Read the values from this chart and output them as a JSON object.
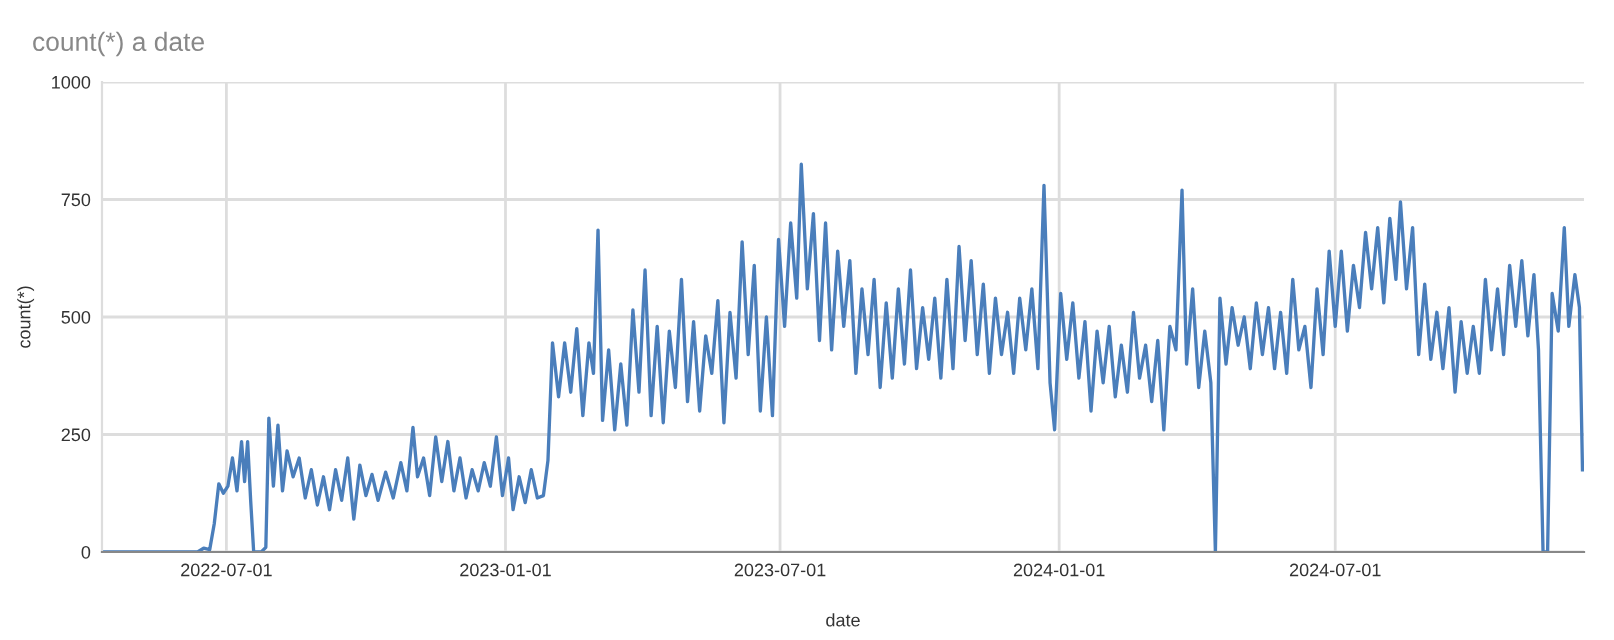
{
  "chart_data": {
    "type": "line",
    "title": "count(*) a date",
    "xlabel": "date",
    "ylabel": "count(*)",
    "xlim": [
      "2022-04-10",
      "2024-12-12"
    ],
    "xticks": [
      "2022-07-01",
      "2023-01-01",
      "2023-07-01",
      "2024-01-01",
      "2024-07-01"
    ],
    "ylim": [
      0,
      1000
    ],
    "yticks": [
      0,
      250,
      500,
      750,
      1000
    ],
    "grid": true,
    "marker": "none",
    "line_style": "solid",
    "x": [
      "2022-04-10",
      "2022-05-15",
      "2022-06-12",
      "2022-06-16",
      "2022-06-20",
      "2022-06-23",
      "2022-06-26",
      "2022-06-29",
      "2022-07-02",
      "2022-07-05",
      "2022-07-08",
      "2022-07-11",
      "2022-07-13",
      "2022-07-15",
      "2022-07-17",
      "2022-07-19",
      "2022-07-24",
      "2022-07-27",
      "2022-07-29",
      "2022-08-01",
      "2022-08-04",
      "2022-08-07",
      "2022-08-10",
      "2022-08-14",
      "2022-08-18",
      "2022-08-22",
      "2022-08-26",
      "2022-08-30",
      "2022-09-03",
      "2022-09-07",
      "2022-09-11",
      "2022-09-15",
      "2022-09-19",
      "2022-09-23",
      "2022-09-27",
      "2022-10-01",
      "2022-10-05",
      "2022-10-09",
      "2022-10-14",
      "2022-10-19",
      "2022-10-24",
      "2022-10-28",
      "2022-11-01",
      "2022-11-04",
      "2022-11-08",
      "2022-11-12",
      "2022-11-16",
      "2022-11-20",
      "2022-11-24",
      "2022-11-28",
      "2022-12-02",
      "2022-12-06",
      "2022-12-10",
      "2022-12-14",
      "2022-12-18",
      "2022-12-22",
      "2022-12-26",
      "2022-12-30",
      "2023-01-03",
      "2023-01-06",
      "2023-01-10",
      "2023-01-14",
      "2023-01-18",
      "2023-01-22",
      "2023-01-26",
      "2023-01-29",
      "2023-02-01",
      "2023-02-05",
      "2023-02-09",
      "2023-02-13",
      "2023-02-17",
      "2023-02-21",
      "2023-02-25",
      "2023-02-28",
      "2023-03-03",
      "2023-03-06",
      "2023-03-10",
      "2023-03-14",
      "2023-03-18",
      "2023-03-22",
      "2023-03-26",
      "2023-03-30",
      "2023-04-03",
      "2023-04-07",
      "2023-04-11",
      "2023-04-15",
      "2023-04-19",
      "2023-04-23",
      "2023-04-27",
      "2023-05-01",
      "2023-05-05",
      "2023-05-09",
      "2023-05-13",
      "2023-05-17",
      "2023-05-21",
      "2023-05-25",
      "2023-05-29",
      "2023-06-02",
      "2023-06-06",
      "2023-06-10",
      "2023-06-14",
      "2023-06-18",
      "2023-06-22",
      "2023-06-26",
      "2023-06-30",
      "2023-07-04",
      "2023-07-08",
      "2023-07-12",
      "2023-07-15",
      "2023-07-19",
      "2023-07-23",
      "2023-07-27",
      "2023-07-31",
      "2023-08-04",
      "2023-08-08",
      "2023-08-12",
      "2023-08-16",
      "2023-08-20",
      "2023-08-24",
      "2023-08-28",
      "2023-09-01",
      "2023-09-05",
      "2023-09-09",
      "2023-09-13",
      "2023-09-17",
      "2023-09-21",
      "2023-09-25",
      "2023-09-29",
      "2023-10-03",
      "2023-10-07",
      "2023-10-11",
      "2023-10-15",
      "2023-10-19",
      "2023-10-23",
      "2023-10-27",
      "2023-10-31",
      "2023-11-04",
      "2023-11-08",
      "2023-11-12",
      "2023-11-16",
      "2023-11-20",
      "2023-11-24",
      "2023-11-28",
      "2023-12-02",
      "2023-12-06",
      "2023-12-10",
      "2023-12-14",
      "2023-12-18",
      "2023-12-22",
      "2023-12-26",
      "2023-12-29",
      "2024-01-02",
      "2024-01-06",
      "2024-01-10",
      "2024-01-14",
      "2024-01-18",
      "2024-01-22",
      "2024-01-26",
      "2024-01-30",
      "2024-02-03",
      "2024-02-07",
      "2024-02-11",
      "2024-02-15",
      "2024-02-19",
      "2024-02-23",
      "2024-02-27",
      "2024-03-02",
      "2024-03-06",
      "2024-03-10",
      "2024-03-14",
      "2024-03-18",
      "2024-03-22",
      "2024-03-25",
      "2024-03-29",
      "2024-04-02",
      "2024-04-06",
      "2024-04-10",
      "2024-04-13",
      "2024-04-16",
      "2024-04-20",
      "2024-04-24",
      "2024-04-28",
      "2024-05-02",
      "2024-05-06",
      "2024-05-10",
      "2024-05-14",
      "2024-05-18",
      "2024-05-22",
      "2024-05-26",
      "2024-05-30",
      "2024-06-03",
      "2024-06-07",
      "2024-06-11",
      "2024-06-15",
      "2024-06-19",
      "2024-06-23",
      "2024-06-27",
      "2024-07-01",
      "2024-07-05",
      "2024-07-09",
      "2024-07-13",
      "2024-07-17",
      "2024-07-21",
      "2024-07-25",
      "2024-07-29",
      "2024-08-02",
      "2024-08-06",
      "2024-08-10",
      "2024-08-13",
      "2024-08-17",
      "2024-08-21",
      "2024-08-25",
      "2024-08-29",
      "2024-09-02",
      "2024-09-06",
      "2024-09-10",
      "2024-09-14",
      "2024-09-18",
      "2024-09-22",
      "2024-09-26",
      "2024-09-30",
      "2024-10-04",
      "2024-10-08",
      "2024-10-12",
      "2024-10-16",
      "2024-10-20",
      "2024-10-24",
      "2024-10-28",
      "2024-11-01",
      "2024-11-05",
      "2024-11-09",
      "2024-11-12",
      "2024-11-15",
      "2024-11-18",
      "2024-11-21",
      "2024-11-25",
      "2024-11-29",
      "2024-12-02",
      "2024-12-06",
      "2024-12-09",
      "2024-12-11"
    ],
    "series": [
      {
        "color": "#4a7ebb",
        "values": [
          0,
          0,
          0,
          8,
          5,
          60,
          145,
          125,
          140,
          200,
          130,
          235,
          150,
          235,
          110,
          0,
          0,
          10,
          285,
          140,
          270,
          130,
          215,
          160,
          200,
          115,
          175,
          100,
          160,
          90,
          175,
          110,
          200,
          70,
          185,
          120,
          165,
          110,
          170,
          115,
          190,
          130,
          265,
          160,
          200,
          120,
          245,
          150,
          235,
          130,
          200,
          115,
          175,
          130,
          190,
          140,
          245,
          120,
          200,
          90,
          160,
          105,
          175,
          115,
          120,
          195,
          445,
          330,
          445,
          340,
          475,
          290,
          445,
          380,
          685,
          280,
          430,
          260,
          400,
          270,
          515,
          340,
          600,
          290,
          480,
          275,
          470,
          350,
          580,
          320,
          490,
          300,
          460,
          380,
          535,
          275,
          510,
          370,
          660,
          420,
          610,
          300,
          500,
          290,
          665,
          480,
          700,
          540,
          825,
          560,
          720,
          450,
          700,
          430,
          640,
          480,
          620,
          380,
          560,
          420,
          580,
          350,
          530,
          370,
          560,
          400,
          600,
          390,
          520,
          410,
          540,
          370,
          580,
          390,
          650,
          450,
          620,
          420,
          570,
          380,
          540,
          420,
          510,
          380,
          540,
          430,
          560,
          390,
          780,
          360,
          260,
          550,
          410,
          530,
          370,
          490,
          300,
          470,
          360,
          480,
          330,
          440,
          340,
          510,
          370,
          440,
          320,
          450,
          260,
          480,
          430,
          770,
          400,
          560,
          350,
          470,
          360,
          0,
          540,
          400,
          520,
          440,
          500,
          390,
          530,
          420,
          520,
          390,
          510,
          380,
          580,
          430,
          480,
          350,
          560,
          420,
          640,
          480,
          640,
          470,
          610,
          520,
          680,
          560,
          690,
          530,
          710,
          580,
          745,
          560,
          690,
          420,
          570,
          410,
          510,
          390,
          520,
          340,
          490,
          380,
          480,
          380,
          580,
          430,
          560,
          420,
          610,
          480,
          620,
          460,
          590,
          430,
          0,
          0,
          550,
          470,
          690,
          480,
          590,
          520,
          175
        ]
      }
    ]
  }
}
